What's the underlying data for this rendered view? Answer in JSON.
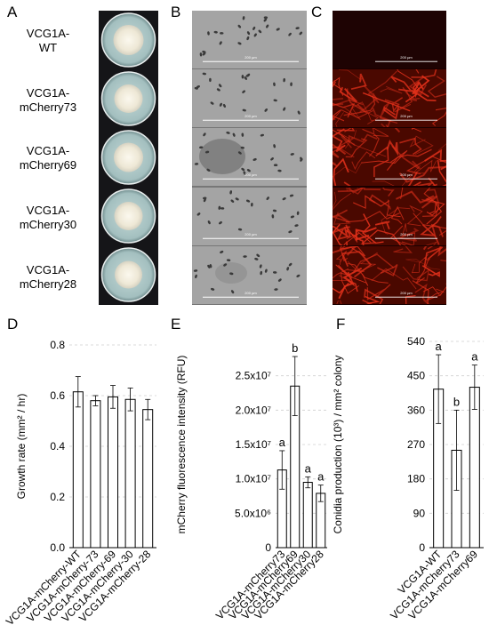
{
  "panels": {
    "A": "A",
    "B": "B",
    "C": "C",
    "D": "D",
    "E": "E",
    "F": "F"
  },
  "strains": [
    {
      "line1": "VCG1A-",
      "line2": "WT"
    },
    {
      "line1": "VCG1A-",
      "line2": "mCherry73"
    },
    {
      "line1": "VCG1A-",
      "line2": "mCherry69"
    },
    {
      "line1": "VCG1A-",
      "line2": "mCherry30"
    },
    {
      "line1": "VCG1A-",
      "line2": "mCherry28"
    }
  ],
  "scale_bar_label": "200 µm",
  "colors": {
    "plate_agar": "#a8c4c4",
    "colony": "#f1ecdc",
    "fluor_red": "#e0301a",
    "bar_fill": "#ffffff",
    "bar_stroke": "#000000",
    "grid": "#cfcfcf"
  },
  "chart_data": [
    {
      "type": "bar",
      "panel": "D",
      "categories": [
        "VCG1A-mCherry-WT",
        "VCG1A-mCherry-73",
        "VCG1A-mCherry-69",
        "VCG1A-mCherry-30",
        "VCG1A-mCherry-28"
      ],
      "values": [
        0.615,
        0.58,
        0.595,
        0.585,
        0.545
      ],
      "errors": [
        0.06,
        0.02,
        0.045,
        0.045,
        0.04
      ],
      "ylabel": "Growth rate (mm² / hr)",
      "ylim": [
        0,
        0.8
      ],
      "yticks": [
        0,
        0.2,
        0.4,
        0.6,
        0.8
      ],
      "ytick_labels": [
        "0.0",
        "0.2",
        "0.4",
        "0.6",
        "0.8"
      ],
      "letters": [],
      "grid": true
    },
    {
      "type": "bar",
      "panel": "E",
      "categories": [
        "VCG1A-mCherry73",
        "VCG1A-mCherry69",
        "VCG1A-mCherry30",
        "VCG1A-mCherry28"
      ],
      "values": [
        11300000,
        23500000,
        9500000,
        7900000
      ],
      "errors": [
        2800000,
        4300000,
        800000,
        1200000
      ],
      "ylabel": "mCherry fluorescence intensity (RFU)",
      "ylim": [
        0,
        30000000
      ],
      "yticks": [
        0,
        5000000,
        10000000,
        15000000,
        20000000,
        25000000
      ],
      "ytick_labels": [
        "0",
        "5.0x10⁶",
        "1.0x10⁷",
        "1.5x10⁷",
        "2.0x10⁷",
        "2.5x10⁷"
      ],
      "letters": [
        "a",
        "b",
        "a",
        "a"
      ],
      "grid": true
    },
    {
      "type": "bar",
      "panel": "F",
      "categories": [
        "VCG1A-WT",
        "VCG1A-mCherry73",
        "VCG1A-mCherry69"
      ],
      "values": [
        415,
        255,
        420
      ],
      "errors": [
        90,
        105,
        58
      ],
      "ylabel": "Conidia production (10³) / mm² colony",
      "ylim": [
        0,
        540
      ],
      "yticks": [
        0,
        90,
        180,
        270,
        360,
        450,
        540
      ],
      "ytick_labels": [
        "0",
        "90",
        "180",
        "270",
        "360",
        "450",
        "540"
      ],
      "letters": [
        "a",
        "b",
        "a"
      ],
      "grid": true
    }
  ]
}
